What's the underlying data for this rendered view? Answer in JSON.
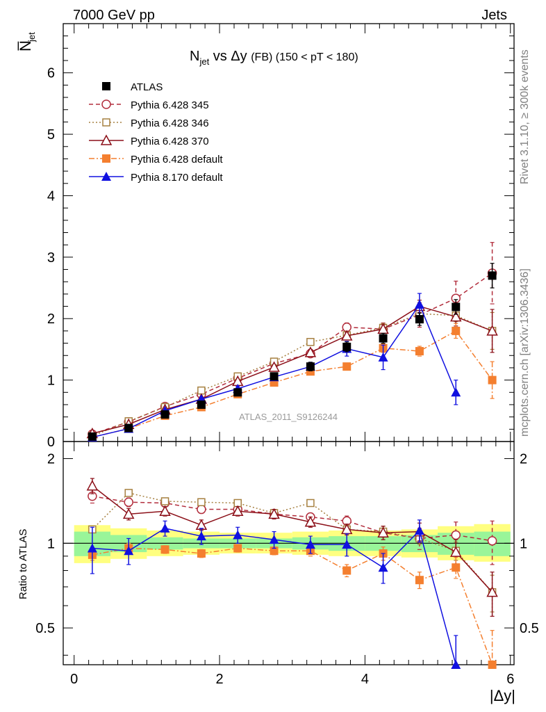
{
  "header": {
    "left": "7000 GeV pp",
    "right": "Jets"
  },
  "side": {
    "top": "Rivet 3.1.10, ≥ 300k events",
    "bottom": "mcplots.cern.ch [arXiv:1306.3436]"
  },
  "top_panel": {
    "ylabel": "N̅",
    "ylabel_sub": "jet",
    "title": {
      "main": "N",
      "sub": "jet",
      "rest": " vs Δy ",
      "fb": "(FB)",
      "range": " (150 < pT < 180)"
    },
    "analysis_id": "ATLAS_2011_S9126244"
  },
  "bottom_panel": {
    "ylabel": "Ratio to ATLAS"
  },
  "xlabel": "|Δy|",
  "chart_data": [
    {
      "type": "line",
      "panel": "main",
      "xlim": [
        -0.15,
        6.05
      ],
      "ylim": [
        0,
        6.8
      ],
      "x_ticks": [
        0,
        2,
        4,
        6
      ],
      "y_ticks": [
        0,
        1,
        2,
        3,
        4,
        5,
        6
      ],
      "legend_position": "top-left",
      "x": [
        0.25,
        0.75,
        1.25,
        1.75,
        2.25,
        2.75,
        3.25,
        3.75,
        4.25,
        4.75,
        5.25,
        5.75
      ],
      "series": [
        {
          "name": "ATLAS",
          "color": "#000000",
          "style": "data",
          "marker": "square",
          "values": [
            0.08,
            0.22,
            0.44,
            0.6,
            0.8,
            1.06,
            1.22,
            1.54,
            1.68,
            1.99,
            2.19,
            2.7
          ],
          "errors": [
            0.01,
            0.01,
            0.02,
            0.02,
            0.03,
            0.04,
            0.07,
            0.08,
            0.08,
            0.1,
            0.12,
            0.2
          ]
        },
        {
          "name": "Pythia 6.428 345",
          "color": "#b22d3c",
          "style": "dashed",
          "marker": "open-circle",
          "values": [
            0.12,
            0.32,
            0.57,
            0.77,
            1.03,
            1.27,
            1.43,
            1.86,
            1.83,
            2.06,
            2.33,
            2.74
          ],
          "errors": [
            0.01,
            0.01,
            0.02,
            0.02,
            0.03,
            0.03,
            0.05,
            0.07,
            0.1,
            0.2,
            0.28,
            0.5
          ]
        },
        {
          "name": "Pythia 6.428 346",
          "color": "#a68040",
          "style": "dotted",
          "marker": "open-square",
          "values": [
            0.09,
            0.33,
            0.56,
            0.83,
            1.06,
            1.3,
            1.62,
            1.73,
            1.85,
            2.08,
            2.05,
            1.8
          ],
          "errors": [
            0.01,
            0.01,
            0.02,
            0.02,
            0.03,
            0.03,
            0.04,
            0.05,
            0.07,
            0.1,
            0.1,
            0.3
          ]
        },
        {
          "name": "Pythia 6.428 370",
          "color": "#8b0f18",
          "style": "solid",
          "marker": "open-triangle",
          "values": [
            0.13,
            0.28,
            0.52,
            0.69,
            0.98,
            1.21,
            1.45,
            1.72,
            1.83,
            2.2,
            2.03,
            1.8
          ],
          "errors": [
            0.01,
            0.01,
            0.02,
            0.02,
            0.03,
            0.04,
            0.05,
            0.06,
            0.07,
            0.1,
            0.15,
            0.35
          ]
        },
        {
          "name": "Pythia 6.428 default",
          "color": "#f47f2f",
          "style": "dashdot",
          "marker": "square",
          "values": [
            0.07,
            0.21,
            0.42,
            0.56,
            0.77,
            0.96,
            1.14,
            1.22,
            1.52,
            1.47,
            1.8,
            1.0
          ],
          "errors": [
            0.01,
            0.01,
            0.02,
            0.02,
            0.02,
            0.03,
            0.04,
            0.05,
            0.07,
            0.08,
            0.12,
            0.3
          ]
        },
        {
          "name": "Pythia 8.170 default",
          "color": "#1010e0",
          "style": "solid",
          "marker": "triangle",
          "values": [
            0.07,
            0.21,
            0.5,
            0.69,
            0.86,
            1.05,
            1.22,
            1.51,
            1.37,
            2.23,
            0.8,
            null
          ],
          "errors": [
            0.01,
            0.01,
            0.02,
            0.03,
            0.04,
            0.05,
            0.07,
            0.12,
            0.2,
            0.18,
            0.2,
            null
          ]
        }
      ]
    },
    {
      "type": "line",
      "panel": "ratio",
      "xlim": [
        -0.15,
        6.05
      ],
      "ylim": [
        0.37,
        2.3
      ],
      "y_ticks": [
        0.5,
        1,
        2
      ],
      "log_scale_y": true,
      "reference_line": 1,
      "bands": {
        "yellow": [
          [
            0.85,
            1.16
          ],
          [
            0.88,
            1.13
          ],
          [
            0.9,
            1.11
          ],
          [
            0.91,
            1.1
          ],
          [
            0.92,
            1.09
          ],
          [
            0.92,
            1.09
          ],
          [
            0.91,
            1.1
          ],
          [
            0.9,
            1.11
          ],
          [
            0.9,
            1.11
          ],
          [
            0.89,
            1.12
          ],
          [
            0.87,
            1.15
          ],
          [
            0.86,
            1.17
          ]
        ],
        "green": [
          [
            0.9,
            1.1
          ],
          [
            0.93,
            1.07
          ],
          [
            0.95,
            1.05
          ],
          [
            0.96,
            1.04
          ],
          [
            0.96,
            1.04
          ],
          [
            0.96,
            1.04
          ],
          [
            0.95,
            1.05
          ],
          [
            0.94,
            1.06
          ],
          [
            0.94,
            1.06
          ],
          [
            0.93,
            1.07
          ],
          [
            0.91,
            1.09
          ],
          [
            0.9,
            1.1
          ]
        ]
      },
      "x": [
        0.25,
        0.75,
        1.25,
        1.75,
        2.25,
        2.75,
        3.25,
        3.75,
        4.25,
        4.75,
        5.25,
        5.75
      ],
      "series": [
        {
          "name": "Pythia 6.428 345",
          "values": [
            1.47,
            1.4,
            1.39,
            1.32,
            1.32,
            1.27,
            1.24,
            1.2,
            1.09,
            1.04,
            1.07,
            1.02
          ],
          "errors": [
            0.08,
            0.05,
            0.03,
            0.03,
            0.03,
            0.03,
            0.04,
            0.05,
            0.06,
            0.09,
            0.12,
            0.18
          ]
        },
        {
          "name": "Pythia 6.428 346",
          "values": [
            1.12,
            1.51,
            1.41,
            1.4,
            1.39,
            1.28,
            1.39,
            1.12,
            1.1,
            1.04,
            0.94,
            0.67
          ],
          "errors": [
            0.03,
            0.04,
            0.03,
            0.02,
            0.02,
            0.02,
            0.03,
            0.04,
            0.05,
            0.05,
            0.07,
            0.1
          ]
        },
        {
          "name": "Pythia 6.428 370",
          "values": [
            1.6,
            1.27,
            1.3,
            1.16,
            1.3,
            1.27,
            1.19,
            1.12,
            1.09,
            1.1,
            0.93,
            0.67
          ],
          "errors": [
            0.1,
            0.06,
            0.05,
            0.05,
            0.05,
            0.05,
            0.05,
            0.05,
            0.06,
            0.08,
            0.1,
            0.12
          ]
        },
        {
          "name": "Pythia 6.428 default",
          "values": [
            0.91,
            0.96,
            0.95,
            0.92,
            0.96,
            0.94,
            0.94,
            0.8,
            0.92,
            0.74,
            0.82,
            0.37
          ],
          "errors": [
            0.04,
            0.04,
            0.03,
            0.03,
            0.03,
            0.03,
            0.04,
            0.04,
            0.05,
            0.05,
            0.07,
            0.12
          ]
        },
        {
          "name": "Pythia 8.170 default",
          "values": [
            0.96,
            0.94,
            1.13,
            1.06,
            1.07,
            1.03,
            0.99,
            0.99,
            0.82,
            1.11,
            0.37,
            null
          ],
          "errors": [
            0.18,
            0.1,
            0.07,
            0.07,
            0.07,
            0.07,
            0.07,
            0.09,
            0.1,
            0.1,
            0.1,
            null
          ]
        }
      ]
    }
  ]
}
